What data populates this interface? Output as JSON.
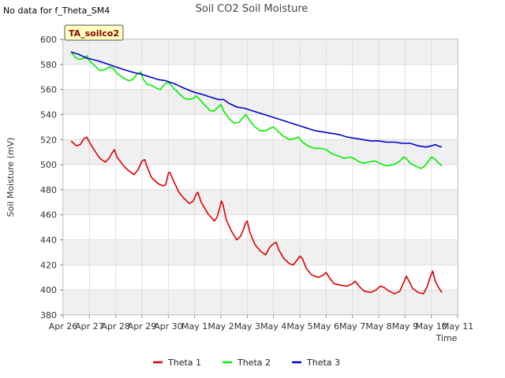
{
  "no_data_note": "No data for f_Theta_SM4",
  "chart_data": {
    "type": "line",
    "title": "Soil CO2 Soil Moisture",
    "xlabel": "Time",
    "ylabel": "Soil Moisture (mV)",
    "ylim": [
      380,
      600
    ],
    "yticks": [
      380,
      400,
      420,
      440,
      460,
      480,
      500,
      520,
      540,
      560,
      580,
      600
    ],
    "xlim": [
      0,
      15
    ],
    "xticks": [
      {
        "x": 0,
        "label": "Apr 26"
      },
      {
        "x": 1,
        "label": "Apr 27"
      },
      {
        "x": 2,
        "label": "Apr 28"
      },
      {
        "x": 3,
        "label": "Apr 29"
      },
      {
        "x": 4,
        "label": "Apr 30"
      },
      {
        "x": 5,
        "label": "May 1"
      },
      {
        "x": 6,
        "label": "May 2"
      },
      {
        "x": 7,
        "label": "May 3"
      },
      {
        "x": 8,
        "label": "May 4"
      },
      {
        "x": 9,
        "label": "May 5"
      },
      {
        "x": 10,
        "label": "May 6"
      },
      {
        "x": 11,
        "label": "May 7"
      },
      {
        "x": 12,
        "label": "May 8"
      },
      {
        "x": 13,
        "label": "May 9"
      },
      {
        "x": 14,
        "label": "May 10"
      },
      {
        "x": 15,
        "label": "May 11"
      }
    ],
    "grid": true,
    "badge": "TA_soilco2",
    "legend_position": "bottom",
    "series": [
      {
        "name": "Theta 1",
        "color": "#dd0000",
        "points": [
          [
            0.3,
            519
          ],
          [
            0.5,
            515
          ],
          [
            0.65,
            516
          ],
          [
            0.8,
            521
          ],
          [
            0.9,
            522
          ],
          [
            1.0,
            518
          ],
          [
            1.2,
            511
          ],
          [
            1.4,
            505
          ],
          [
            1.6,
            502
          ],
          [
            1.75,
            505
          ],
          [
            1.85,
            509
          ],
          [
            1.95,
            512
          ],
          [
            2.05,
            506
          ],
          [
            2.3,
            499
          ],
          [
            2.5,
            495
          ],
          [
            2.7,
            492
          ],
          [
            2.85,
            496
          ],
          [
            3.0,
            503
          ],
          [
            3.1,
            504
          ],
          [
            3.2,
            498
          ],
          [
            3.35,
            490
          ],
          [
            3.6,
            485
          ],
          [
            3.8,
            483
          ],
          [
            3.9,
            484
          ],
          [
            4.0,
            493
          ],
          [
            4.05,
            494
          ],
          [
            4.2,
            487
          ],
          [
            4.4,
            478
          ],
          [
            4.6,
            473
          ],
          [
            4.8,
            469
          ],
          [
            4.95,
            471
          ],
          [
            5.05,
            476
          ],
          [
            5.12,
            478
          ],
          [
            5.25,
            470
          ],
          [
            5.5,
            461
          ],
          [
            5.75,
            455
          ],
          [
            5.85,
            458
          ],
          [
            5.95,
            465
          ],
          [
            6.02,
            471
          ],
          [
            6.08,
            468
          ],
          [
            6.2,
            456
          ],
          [
            6.4,
            447
          ],
          [
            6.6,
            440
          ],
          [
            6.75,
            443
          ],
          [
            6.85,
            448
          ],
          [
            6.95,
            454
          ],
          [
            7.0,
            455
          ],
          [
            7.1,
            446
          ],
          [
            7.3,
            436
          ],
          [
            7.5,
            431
          ],
          [
            7.7,
            428
          ],
          [
            7.85,
            434
          ],
          [
            8.0,
            437
          ],
          [
            8.1,
            438
          ],
          [
            8.2,
            432
          ],
          [
            8.4,
            425
          ],
          [
            8.6,
            421
          ],
          [
            8.75,
            420
          ],
          [
            8.9,
            424
          ],
          [
            9.0,
            427
          ],
          [
            9.1,
            425
          ],
          [
            9.25,
            417
          ],
          [
            9.45,
            412
          ],
          [
            9.7,
            410
          ],
          [
            9.9,
            412
          ],
          [
            10.0,
            414
          ],
          [
            10.15,
            409
          ],
          [
            10.3,
            405
          ],
          [
            10.5,
            404
          ],
          [
            10.8,
            403
          ],
          [
            11.0,
            405
          ],
          [
            11.1,
            407
          ],
          [
            11.25,
            403
          ],
          [
            11.45,
            399
          ],
          [
            11.7,
            398
          ],
          [
            11.9,
            400
          ],
          [
            12.05,
            403
          ],
          [
            12.2,
            402
          ],
          [
            12.4,
            399
          ],
          [
            12.6,
            397
          ],
          [
            12.8,
            399
          ],
          [
            12.95,
            406
          ],
          [
            13.05,
            411
          ],
          [
            13.15,
            407
          ],
          [
            13.3,
            401
          ],
          [
            13.5,
            398
          ],
          [
            13.7,
            397
          ],
          [
            13.85,
            403
          ],
          [
            13.95,
            410
          ],
          [
            14.05,
            415
          ],
          [
            14.15,
            407
          ],
          [
            14.3,
            401
          ],
          [
            14.4,
            398
          ]
        ]
      },
      {
        "name": "Theta 2",
        "color": "#00ee00",
        "points": [
          [
            0.3,
            590
          ],
          [
            0.45,
            586
          ],
          [
            0.6,
            584
          ],
          [
            0.8,
            585
          ],
          [
            0.9,
            587
          ],
          [
            1.0,
            583
          ],
          [
            1.2,
            579
          ],
          [
            1.4,
            575
          ],
          [
            1.6,
            576
          ],
          [
            1.75,
            578
          ],
          [
            1.9,
            577
          ],
          [
            2.05,
            573
          ],
          [
            2.3,
            569
          ],
          [
            2.5,
            567
          ],
          [
            2.65,
            568
          ],
          [
            2.8,
            572
          ],
          [
            2.95,
            574
          ],
          [
            3.05,
            568
          ],
          [
            3.2,
            564
          ],
          [
            3.4,
            563
          ],
          [
            3.55,
            561
          ],
          [
            3.7,
            560
          ],
          [
            3.85,
            564
          ],
          [
            4.0,
            566
          ],
          [
            4.2,
            561
          ],
          [
            4.4,
            557
          ],
          [
            4.6,
            553
          ],
          [
            4.8,
            552
          ],
          [
            4.95,
            553
          ],
          [
            5.05,
            555
          ],
          [
            5.2,
            552
          ],
          [
            5.4,
            547
          ],
          [
            5.6,
            543
          ],
          [
            5.75,
            543
          ],
          [
            5.9,
            546
          ],
          [
            6.0,
            548
          ],
          [
            6.1,
            543
          ],
          [
            6.3,
            537
          ],
          [
            6.5,
            533
          ],
          [
            6.7,
            534
          ],
          [
            6.85,
            538
          ],
          [
            6.95,
            540
          ],
          [
            7.1,
            535
          ],
          [
            7.3,
            530
          ],
          [
            7.5,
            527
          ],
          [
            7.7,
            527
          ],
          [
            7.85,
            529
          ],
          [
            8.0,
            530
          ],
          [
            8.15,
            527
          ],
          [
            8.35,
            523
          ],
          [
            8.6,
            520
          ],
          [
            8.8,
            521
          ],
          [
            8.95,
            522
          ],
          [
            9.1,
            518
          ],
          [
            9.3,
            515
          ],
          [
            9.55,
            513
          ],
          [
            9.8,
            513
          ],
          [
            10.0,
            512
          ],
          [
            10.2,
            509
          ],
          [
            10.45,
            507
          ],
          [
            10.7,
            505
          ],
          [
            10.9,
            506
          ],
          [
            11.05,
            505
          ],
          [
            11.2,
            503
          ],
          [
            11.4,
            501
          ],
          [
            11.6,
            502
          ],
          [
            11.85,
            503
          ],
          [
            12.05,
            501
          ],
          [
            12.3,
            499
          ],
          [
            12.55,
            500
          ],
          [
            12.75,
            502
          ],
          [
            12.95,
            506
          ],
          [
            13.05,
            505
          ],
          [
            13.2,
            501
          ],
          [
            13.4,
            499
          ],
          [
            13.6,
            497
          ],
          [
            13.75,
            499
          ],
          [
            13.9,
            503
          ],
          [
            14.0,
            506
          ],
          [
            14.1,
            505
          ],
          [
            14.25,
            502
          ],
          [
            14.4,
            499
          ]
        ]
      },
      {
        "name": "Theta 3",
        "color": "#0000cc",
        "points": [
          [
            0.3,
            590
          ],
          [
            0.6,
            588
          ],
          [
            0.9,
            585
          ],
          [
            1.3,
            583
          ],
          [
            1.6,
            581
          ],
          [
            2.0,
            578
          ],
          [
            2.3,
            576
          ],
          [
            2.6,
            574
          ],
          [
            3.0,
            572
          ],
          [
            3.3,
            570
          ],
          [
            3.6,
            568
          ],
          [
            3.9,
            567
          ],
          [
            4.3,
            564
          ],
          [
            4.6,
            561
          ],
          [
            4.95,
            558
          ],
          [
            5.3,
            556
          ],
          [
            5.6,
            554
          ],
          [
            5.9,
            552
          ],
          [
            6.1,
            552
          ],
          [
            6.3,
            549
          ],
          [
            6.6,
            546
          ],
          [
            6.9,
            545
          ],
          [
            7.2,
            543
          ],
          [
            7.5,
            541
          ],
          [
            7.8,
            539
          ],
          [
            8.1,
            537
          ],
          [
            8.4,
            535
          ],
          [
            8.7,
            533
          ],
          [
            9.0,
            531
          ],
          [
            9.3,
            529
          ],
          [
            9.6,
            527
          ],
          [
            9.9,
            526
          ],
          [
            10.2,
            525
          ],
          [
            10.5,
            524
          ],
          [
            10.8,
            522
          ],
          [
            11.1,
            521
          ],
          [
            11.4,
            520
          ],
          [
            11.7,
            519
          ],
          [
            12.0,
            519
          ],
          [
            12.3,
            518
          ],
          [
            12.6,
            518
          ],
          [
            12.9,
            517
          ],
          [
            13.2,
            517
          ],
          [
            13.5,
            515
          ],
          [
            13.8,
            514
          ],
          [
            14.0,
            515
          ],
          [
            14.15,
            516
          ],
          [
            14.25,
            515
          ],
          [
            14.4,
            514
          ]
        ]
      }
    ]
  }
}
